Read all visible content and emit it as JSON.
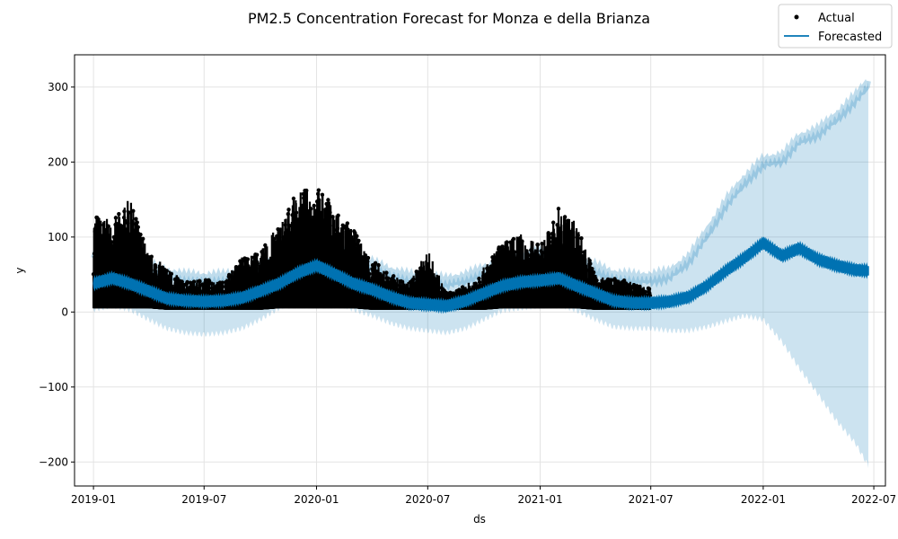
{
  "chart_data": {
    "type": "line",
    "title": "PM2.5 Concentration Forecast for Monza e della Brianza",
    "xlabel": "ds",
    "ylabel": "y",
    "x_axis_type": "date",
    "xlim": [
      "2018-12-01",
      "2022-07-20"
    ],
    "ylim": [
      -232,
      343
    ],
    "x_ticks": [
      "2019-01",
      "2019-07",
      "2020-01",
      "2020-07",
      "2021-01",
      "2021-07",
      "2022-01",
      "2022-07"
    ],
    "y_ticks": [
      300,
      200,
      100,
      0,
      -100,
      -200
    ],
    "y_tick_labels": [
      "300",
      "200",
      "100",
      "0",
      "−100",
      "−200"
    ],
    "grid": true,
    "legend": {
      "placement": "top-right",
      "entries": [
        "Actual",
        "Forecasted"
      ]
    },
    "colors": {
      "actual": "#000000",
      "forecast_line": "#0072b2",
      "interval": "#0072b2"
    },
    "series": [
      {
        "name": "Actual",
        "style": "points",
        "x": [
          "2019-01-01",
          "2019-02-01",
          "2019-03-01",
          "2019-04-01",
          "2019-05-01",
          "2019-06-01",
          "2019-07-01",
          "2019-08-01",
          "2019-09-01",
          "2019-10-01",
          "2019-11-01",
          "2019-12-01",
          "2020-01-01",
          "2020-02-01",
          "2020-03-01",
          "2020-04-01",
          "2020-05-01",
          "2020-06-01",
          "2020-07-01",
          "2020-08-01",
          "2020-09-01",
          "2020-10-01",
          "2020-11-01",
          "2020-12-01",
          "2021-01-01",
          "2021-02-01",
          "2021-03-01",
          "2021-04-01",
          "2021-05-01",
          "2021-06-01",
          "2021-06-30"
        ],
        "y_min": [
          5,
          5,
          5,
          5,
          3,
          3,
          3,
          3,
          3,
          3,
          5,
          5,
          5,
          5,
          5,
          3,
          3,
          3,
          3,
          3,
          3,
          3,
          5,
          5,
          5,
          5,
          5,
          3,
          3,
          3,
          3
        ],
        "y_max": [
          135,
          120,
          152,
          80,
          60,
          40,
          45,
          40,
          75,
          80,
          120,
          160,
          170,
          140,
          110,
          70,
          50,
          40,
          84,
          25,
          35,
          60,
          95,
          105,
          90,
          140,
          122,
          50,
          45,
          40,
          35
        ]
      },
      {
        "name": "Forecasted",
        "style": "line",
        "x": [
          "2019-01-01",
          "2019-02-01",
          "2019-03-01",
          "2019-04-01",
          "2019-05-01",
          "2019-06-01",
          "2019-07-01",
          "2019-08-01",
          "2019-09-01",
          "2019-10-01",
          "2019-11-01",
          "2019-12-01",
          "2020-01-01",
          "2020-02-01",
          "2020-03-01",
          "2020-04-01",
          "2020-05-01",
          "2020-06-01",
          "2020-07-01",
          "2020-08-01",
          "2020-09-01",
          "2020-10-01",
          "2020-11-01",
          "2020-12-01",
          "2021-01-01",
          "2021-02-01",
          "2021-03-01",
          "2021-04-01",
          "2021-05-01",
          "2021-06-01",
          "2021-07-01",
          "2021-08-01",
          "2021-09-01",
          "2021-10-01",
          "2021-11-01",
          "2021-12-01",
          "2022-01-01",
          "2022-02-01",
          "2022-03-01",
          "2022-04-01",
          "2022-05-01",
          "2022-06-01",
          "2022-06-22"
        ],
        "y": [
          38,
          45,
          38,
          28,
          18,
          15,
          14,
          15,
          19,
          28,
          38,
          52,
          62,
          50,
          38,
          30,
          20,
          12,
          10,
          8,
          15,
          25,
          35,
          40,
          42,
          45,
          35,
          25,
          15,
          12,
          12,
          14,
          20,
          35,
          55,
          72,
          92,
          75,
          85,
          70,
          62,
          56,
          55
        ],
        "band_half_width": 8
      },
      {
        "name": "Uncertainty interval",
        "style": "band",
        "x": [
          "2019-01-01",
          "2019-02-01",
          "2019-03-01",
          "2019-04-01",
          "2019-05-01",
          "2019-06-01",
          "2019-07-01",
          "2019-08-01",
          "2019-09-01",
          "2019-10-01",
          "2019-11-01",
          "2019-12-01",
          "2020-01-01",
          "2020-02-01",
          "2020-03-01",
          "2020-04-01",
          "2020-05-01",
          "2020-06-01",
          "2020-07-01",
          "2020-08-01",
          "2020-09-01",
          "2020-10-01",
          "2020-11-01",
          "2020-12-01",
          "2021-01-01",
          "2021-02-01",
          "2021-03-01",
          "2021-04-01",
          "2021-05-01",
          "2021-06-01",
          "2021-07-01",
          "2021-08-01",
          "2021-09-01",
          "2021-10-01",
          "2021-11-01",
          "2021-12-01",
          "2022-01-01",
          "2022-02-01",
          "2022-03-01",
          "2022-04-01",
          "2022-05-01",
          "2022-06-01",
          "2022-06-22"
        ],
        "upper": [
          72,
          78,
          70,
          60,
          50,
          45,
          44,
          45,
          50,
          60,
          70,
          85,
          95,
          85,
          72,
          62,
          52,
          45,
          42,
          40,
          45,
          55,
          65,
          72,
          75,
          78,
          68,
          58,
          48,
          45,
          45,
          50,
          70,
          105,
          145,
          175,
          200,
          205,
          230,
          240,
          260,
          285,
          305
        ],
        "lower": [
          3,
          8,
          3,
          -10,
          -22,
          -28,
          -30,
          -28,
          -22,
          -10,
          5,
          18,
          28,
          15,
          3,
          -5,
          -15,
          -22,
          -25,
          -28,
          -22,
          -10,
          2,
          5,
          8,
          10,
          2,
          -10,
          -20,
          -22,
          -22,
          -25,
          -25,
          -20,
          -12,
          -5,
          -10,
          -40,
          -75,
          -110,
          -145,
          -175,
          -205
        ]
      }
    ]
  }
}
